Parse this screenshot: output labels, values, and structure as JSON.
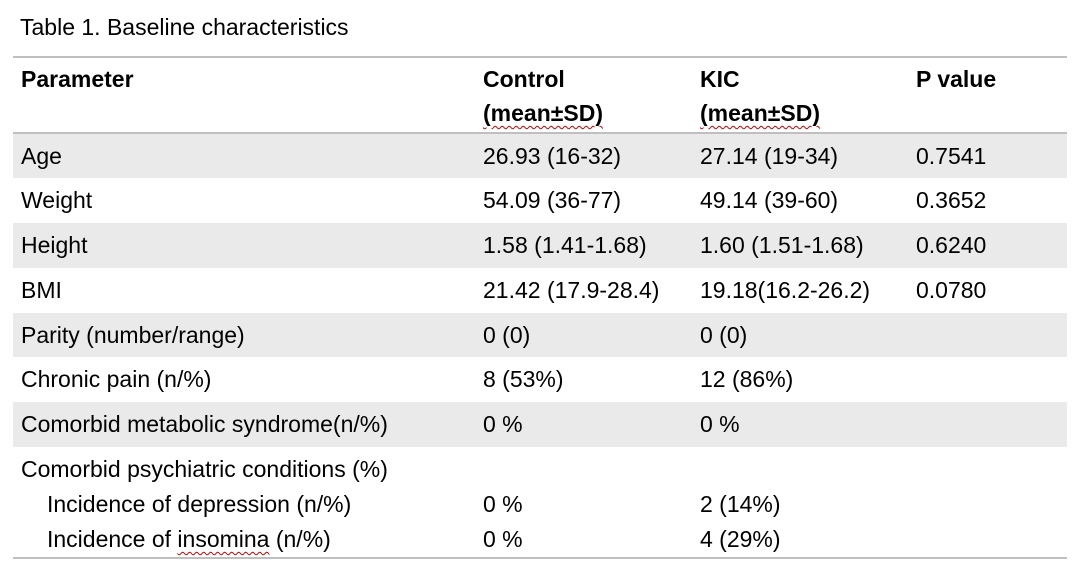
{
  "caption": "Table 1.  Baseline characteristics",
  "header": {
    "parameter": "Parameter",
    "control_line1": "Control",
    "control_line2": "(mean±SD)",
    "kic_line1": "KIC",
    "kic_line2": "(mean±SD)",
    "pvalue": "P value"
  },
  "rows": [
    {
      "parameter": "Age",
      "control": "26.93 (16-32)",
      "kic": "27.14 (19-34)",
      "p": "0.7541"
    },
    {
      "parameter": "Weight",
      "control": "54.09 (36-77)",
      "kic": "49.14 (39-60)",
      "p": "0.3652"
    },
    {
      "parameter": "Height",
      "control": "1.58 (1.41-1.68)",
      "kic": "1.60 (1.51-1.68)",
      "p": "0.6240"
    },
    {
      "parameter": "BMI",
      "control": "21.42 (17.9-28.4)",
      "kic": "19.18(16.2-26.2)",
      "p": "0.0780"
    },
    {
      "parameter": "Parity (number/range)",
      "control": "0 (0)",
      "kic": "0 (0)",
      "p": ""
    },
    {
      "parameter": "Chronic pain (n/%)",
      "control": "8 (53%)",
      "kic": "12 (86%)",
      "p": ""
    },
    {
      "parameter": "Comorbid metabolic syndrome(n/%)",
      "control": "0 %",
      "kic": "0 %",
      "p": ""
    }
  ],
  "psych": {
    "heading": "Comorbid psychiatric conditions (%)",
    "depression": {
      "parameter_pre": "Incidence of depression (n/%)",
      "control": "0 %",
      "kic": "2 (14%)"
    },
    "insomnia": {
      "parameter_pre": "Incidence of ",
      "parameter_misspelled": "insomina",
      "parameter_post": " (n/%)",
      "control": "0 %",
      "kic": "4 (29%)"
    }
  }
}
